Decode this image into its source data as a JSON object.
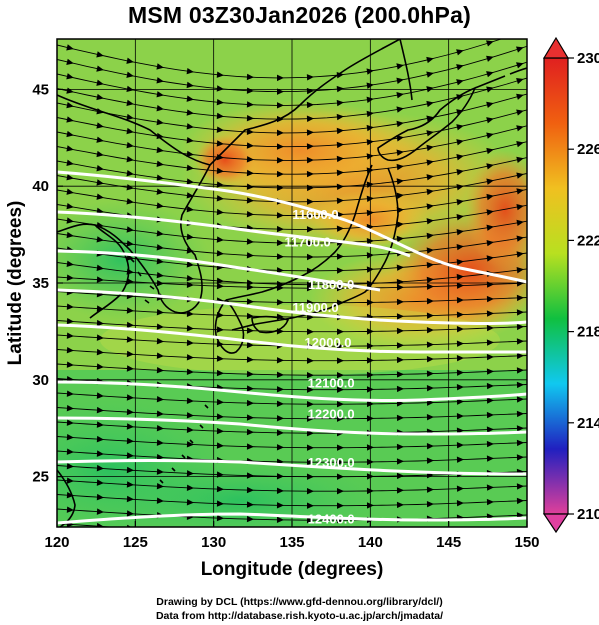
{
  "title": "MSM 03Z30Jan2026 (200.0hPa)",
  "credits": {
    "line1": "Drawing by DCL (https://www.gfd-dennou.org/library/dcl/)",
    "line2": "Data from http://database.rish.kyoto-u.ac.jp/arch/jmadata/"
  },
  "axes": {
    "x_title": "Longitude (degrees)",
    "y_title": "Latitude  (degrees)",
    "x_range": [
      120,
      150
    ],
    "y_range": [
      22.4,
      47.6
    ],
    "x_ticks": [
      "120",
      "125",
      "130",
      "135",
      "140",
      "145",
      "150"
    ],
    "y_ticks": [
      "25",
      "30",
      "35",
      "40",
      "45"
    ]
  },
  "colorbar": {
    "range": [
      210,
      230
    ],
    "labels": [
      "230",
      "226",
      "222",
      "218",
      "214",
      "210"
    ],
    "stops": [
      "#e0409a",
      "#2020c0",
      "#10c8f0",
      "#10c040",
      "#b8e020",
      "#f0c020",
      "#f06010",
      "#e02020"
    ]
  },
  "contour_labels": [
    {
      "text": "11600.0",
      "lon": 136.5,
      "lat": 38.5
    },
    {
      "text": "11700.0",
      "lon": 136.0,
      "lat": 37.1
    },
    {
      "text": "11800.0",
      "lon": 137.5,
      "lat": 34.9
    },
    {
      "text": "11900.0",
      "lon": 136.5,
      "lat": 33.7
    },
    {
      "text": "12000.0",
      "lon": 137.3,
      "lat": 31.9
    },
    {
      "text": "12100.0",
      "lon": 137.5,
      "lat": 29.8
    },
    {
      "text": "12200.0",
      "lon": 137.5,
      "lat": 28.2
    },
    {
      "text": "12300.0",
      "lon": 137.5,
      "lat": 25.7
    },
    {
      "text": "12400.0",
      "lon": 137.5,
      "lat": 22.8
    }
  ],
  "legend_colors": {
    "background_field": "#9ad84a",
    "warm_region": "#f0a030",
    "hot_region": "#e85a20",
    "cool_region": "#38c860",
    "contour_line": "#ffffff",
    "streamline": "#000000"
  }
}
